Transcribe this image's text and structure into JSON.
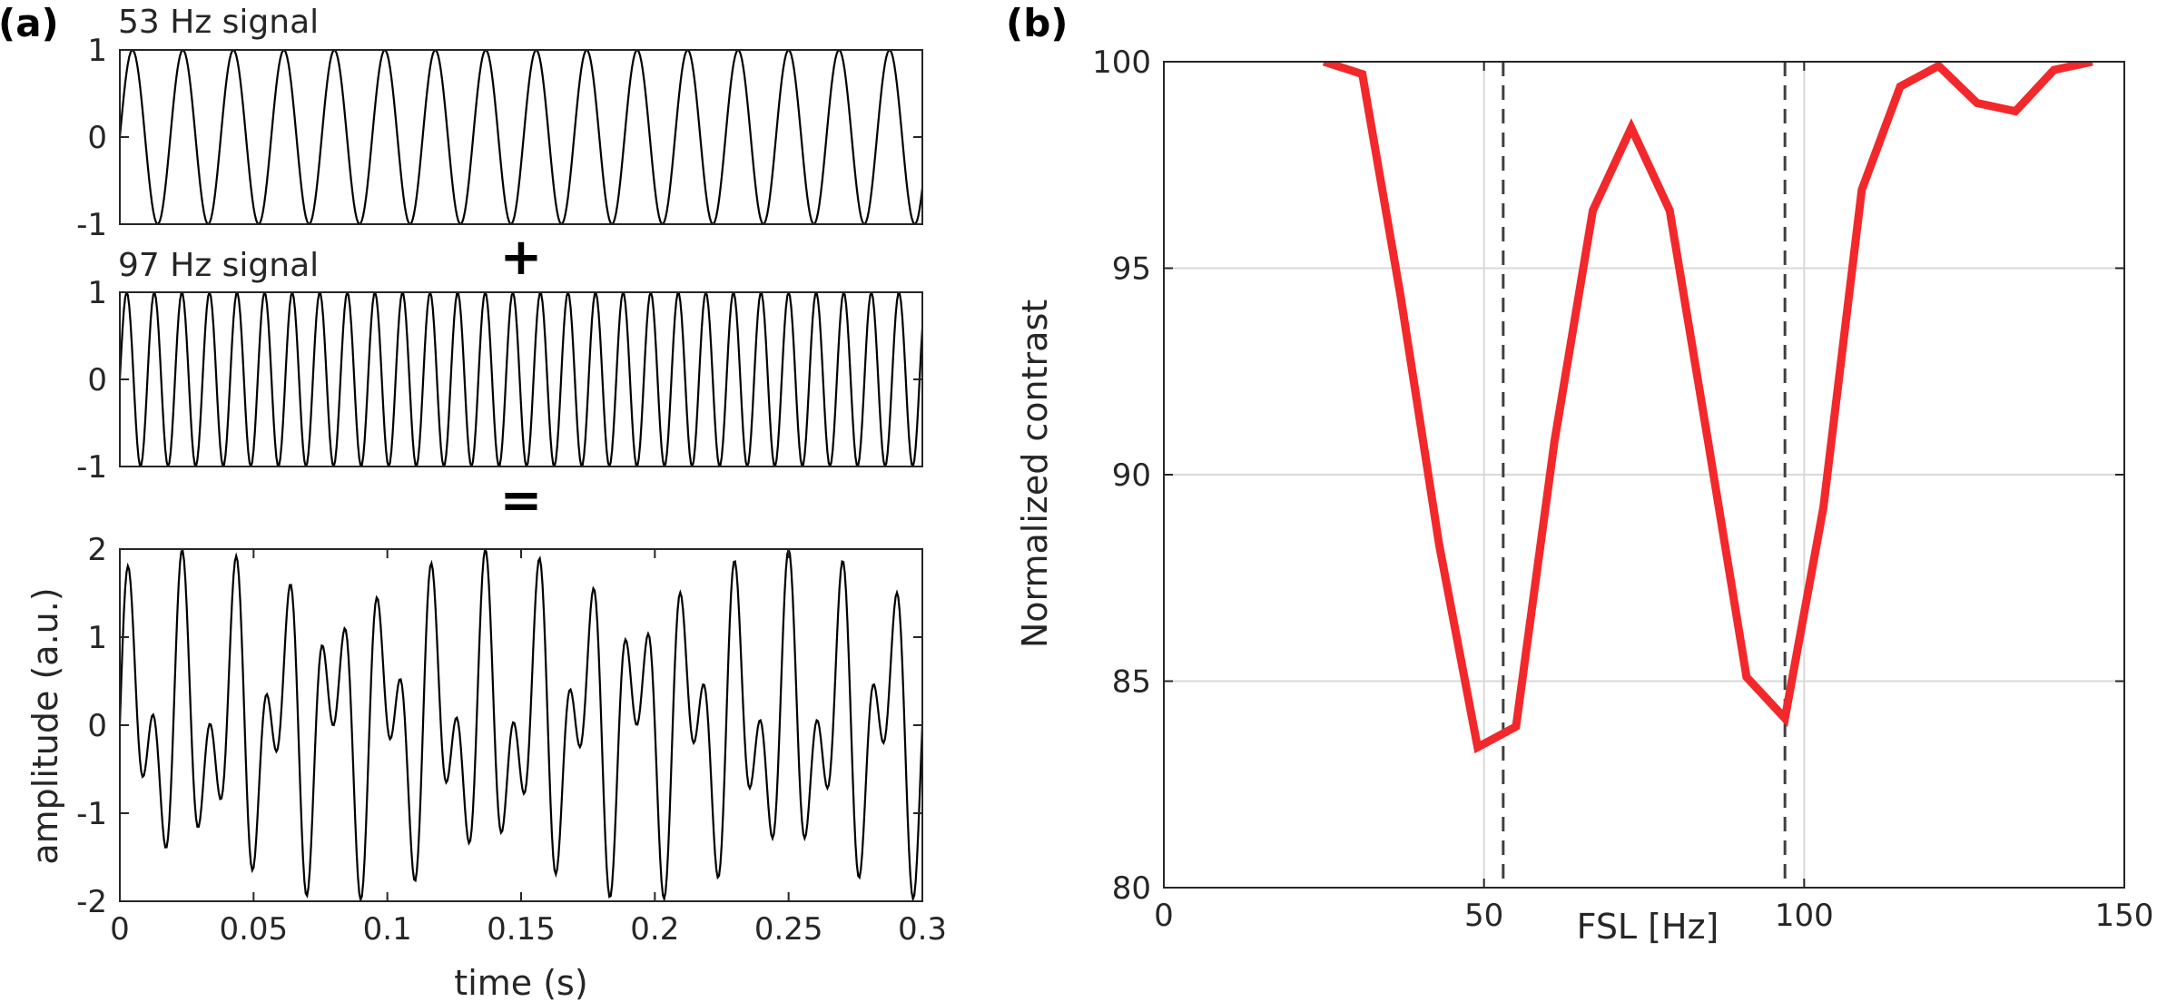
{
  "panels": {
    "a": {
      "label": "(a)"
    },
    "b": {
      "label": "(b)"
    }
  },
  "operators": {
    "plus": "+",
    "equals": "="
  },
  "colors": {
    "trace": "#000000",
    "curve": "#f2282b",
    "frame": "#262626",
    "grid": "#d9d9d9",
    "marker": "#404040"
  },
  "chart_data": [
    {
      "type": "line",
      "title": "53 Hz signal",
      "xlabel": "",
      "ylabel": "",
      "xlim": [
        0,
        0.3
      ],
      "ylim": [
        -1,
        1
      ],
      "y_ticks": [
        "1",
        "0",
        "-1"
      ],
      "grid": false,
      "series": [
        {
          "function": "sine",
          "frequency_hz": 53,
          "amplitude": 1,
          "x_step": 0.0005
        }
      ]
    },
    {
      "type": "line",
      "title": "97 Hz signal",
      "xlabel": "",
      "ylabel": "",
      "xlim": [
        0,
        0.3
      ],
      "ylim": [
        -1,
        1
      ],
      "y_ticks": [
        "1",
        "0",
        "-1"
      ],
      "grid": false,
      "series": [
        {
          "function": "sine",
          "frequency_hz": 97,
          "amplitude": 1,
          "x_step": 0.0005
        }
      ]
    },
    {
      "type": "line",
      "title": "",
      "xlabel": "time (s)",
      "ylabel": "amplitude (a.u.)",
      "xlim": [
        0,
        0.3
      ],
      "ylim": [
        -2,
        2
      ],
      "x_ticks": [
        "0",
        "0.05",
        "0.1",
        "0.15",
        "0.2",
        "0.25",
        "0.3"
      ],
      "y_ticks": [
        "2",
        "1",
        "0",
        "-1",
        "-2"
      ],
      "grid": false,
      "series": [
        {
          "function": "sum of sines",
          "frequencies_hz": [
            53,
            97
          ],
          "amplitude": 1,
          "x_step": 0.0005
        }
      ]
    },
    {
      "type": "line",
      "title": "",
      "xlabel": "FSL [Hz]",
      "ylabel": "Normalized contrast",
      "xlim": [
        0,
        150
      ],
      "ylim": [
        80,
        100
      ],
      "x_ticks": [
        "0",
        "50",
        "100",
        "150"
      ],
      "y_ticks": [
        "100",
        "95",
        "90",
        "85",
        "80"
      ],
      "grid": true,
      "reference_lines_x": [
        53,
        97
      ],
      "series": [
        {
          "x": [
            25,
            31,
            37,
            43,
            49,
            55,
            61,
            67,
            73,
            79,
            85,
            91,
            97,
            103,
            109,
            115,
            121,
            127,
            133,
            139,
            145
          ],
          "y": [
            100,
            99.7,
            94.3,
            88.3,
            83.4,
            83.9,
            90.8,
            96.4,
            98.4,
            96.4,
            90.8,
            85.1,
            84.1,
            89.2,
            96.9,
            99.4,
            99.9,
            99.0,
            98.8,
            99.8,
            100
          ]
        }
      ]
    }
  ]
}
